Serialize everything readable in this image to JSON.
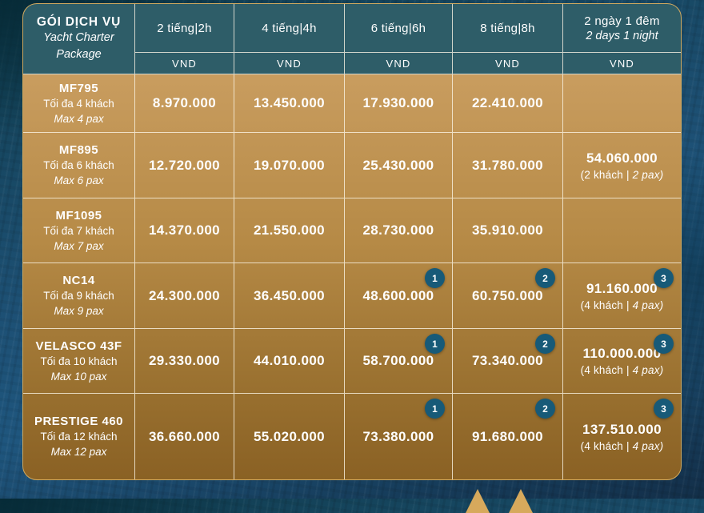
{
  "colors": {
    "header_teal": "#2E5D68",
    "gold_top": "#CBA165",
    "gold_bottom": "#8A6124",
    "badge_navy": "#175A78",
    "table_border_gold": "#D0A95E"
  },
  "table": {
    "package": {
      "title": "GÓI DỊCH VỤ",
      "subtitle_line1": "Yacht Charter",
      "subtitle_line2": "Package"
    },
    "columns": [
      {
        "label": "2 tiếng|2h",
        "label_en": "",
        "currency": "VND"
      },
      {
        "label": "4 tiếng|4h",
        "label_en": "",
        "currency": "VND"
      },
      {
        "label": "6 tiếng|6h",
        "label_en": "",
        "currency": "VND"
      },
      {
        "label": "8 tiếng|8h",
        "label_en": "",
        "currency": "VND"
      },
      {
        "label": "2 ngày 1 đêm",
        "label_en": "2 days 1 night",
        "currency": "VND"
      }
    ],
    "rows": [
      {
        "name": "MF795",
        "capacity_vi": "Tối đa 4 khách",
        "capacity_en": "Max 4 pax",
        "prices": [
          {
            "value": "8.970.000"
          },
          {
            "value": "13.450.000"
          },
          {
            "value": "17.930.000"
          },
          {
            "value": "22.410.000"
          },
          null
        ]
      },
      {
        "name": "MF895",
        "capacity_vi": "Tối đa 6 khách",
        "capacity_en": "Max 6 pax",
        "prices": [
          {
            "value": "12.720.000"
          },
          {
            "value": "19.070.000"
          },
          {
            "value": "25.430.000"
          },
          {
            "value": "31.780.000"
          },
          {
            "value": "54.060.000",
            "note": {
              "regular": "(2 khách | ",
              "italic": "2 pax)"
            }
          }
        ]
      },
      {
        "name": "MF1095",
        "capacity_vi": "Tối đa 7 khách",
        "capacity_en": "Max 7 pax",
        "prices": [
          {
            "value": "14.370.000"
          },
          {
            "value": "21.550.000"
          },
          {
            "value": "28.730.000"
          },
          {
            "value": "35.910.000"
          },
          null
        ]
      },
      {
        "name": "NC14",
        "capacity_vi": "Tối đa 9 khách",
        "capacity_en": "Max 9 pax",
        "prices": [
          {
            "value": "24.300.000"
          },
          {
            "value": "36.450.000"
          },
          {
            "value": "48.600.000",
            "badge": "1"
          },
          {
            "value": "60.750.000",
            "badge": "2"
          },
          {
            "value": "91.160.000",
            "badge": "3",
            "note": {
              "regular": "(4 khách | ",
              "italic": "4 pax)"
            }
          }
        ]
      },
      {
        "name": "VELASCO 43F",
        "capacity_vi": "Tối đa 10 khách",
        "capacity_en": "Max 10 pax",
        "prices": [
          {
            "value": "29.330.000"
          },
          {
            "value": "44.010.000"
          },
          {
            "value": "58.700.000",
            "badge": "1"
          },
          {
            "value": "73.340.000",
            "badge": "2"
          },
          {
            "value": "110.000.000",
            "badge": "3",
            "note": {
              "regular": "(4 khách | ",
              "italic": "4 pax)"
            }
          }
        ]
      },
      {
        "name": "PRESTIGE 460",
        "capacity_vi": "Tối đa 12 khách",
        "capacity_en": "Max 12 pax",
        "prices": [
          {
            "value": "36.660.000"
          },
          {
            "value": "55.020.000"
          },
          {
            "value": "73.380.000",
            "badge": "1"
          },
          {
            "value": "91.680.000",
            "badge": "2"
          },
          {
            "value": "137.510.000",
            "badge": "3",
            "note": {
              "regular": "(4 khách | ",
              "italic": "4 pax)"
            }
          }
        ]
      }
    ]
  }
}
